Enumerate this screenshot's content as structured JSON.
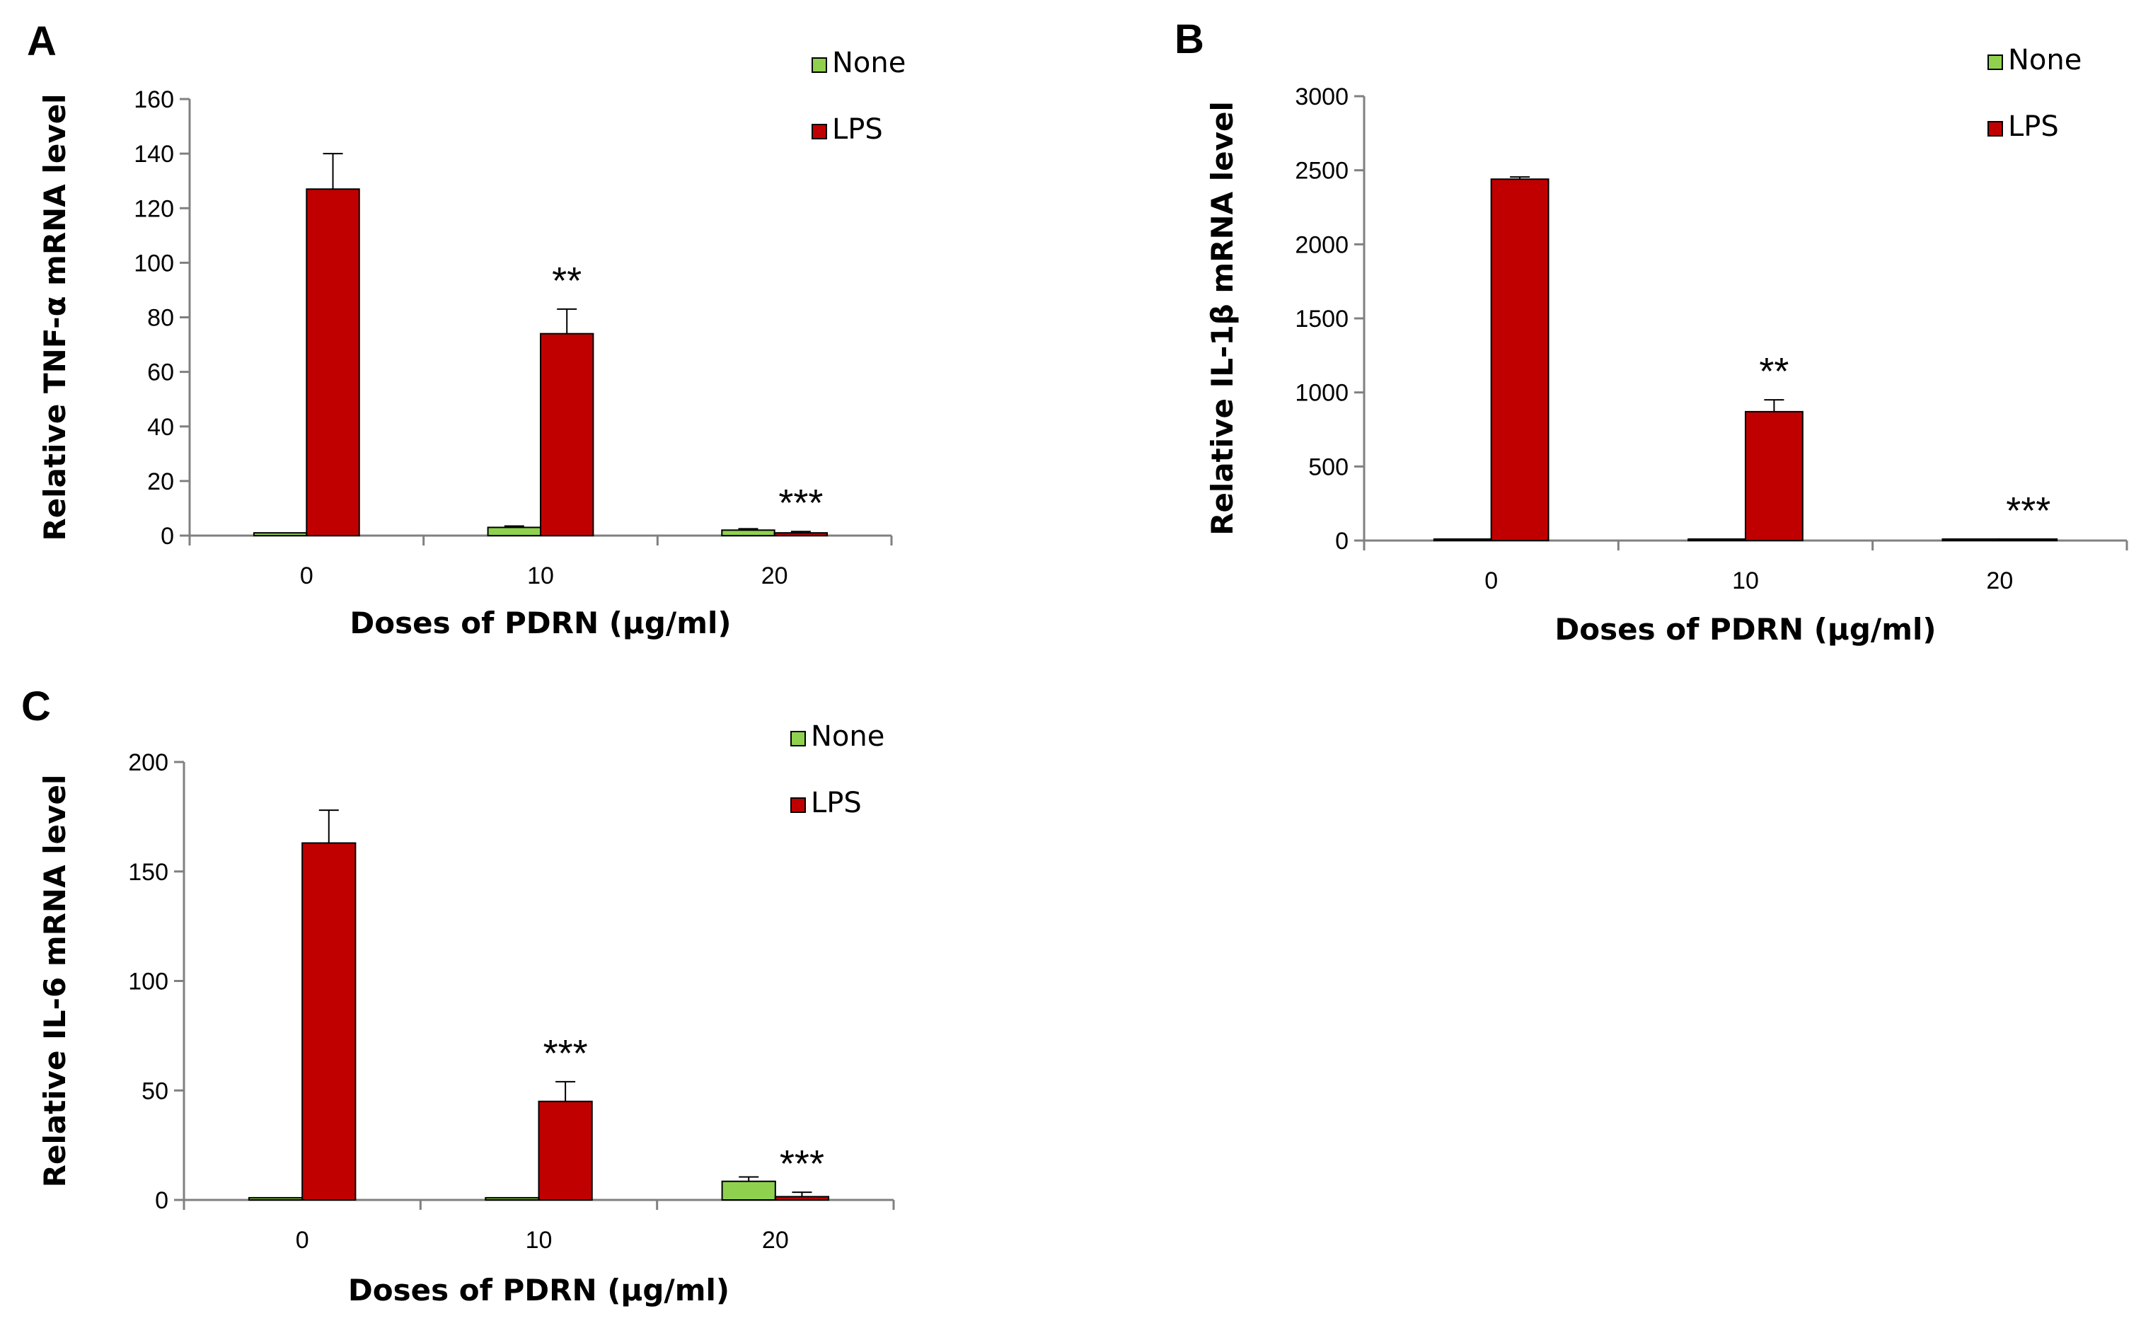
{
  "chart_data": [
    {
      "panel": "A",
      "type": "bar",
      "categories": [
        "0",
        "10",
        "20"
      ],
      "series": [
        {
          "name": "None",
          "color": "#8fd14f",
          "values": [
            1,
            3,
            2
          ],
          "errors": [
            0,
            0.5,
            0.5
          ]
        },
        {
          "name": "LPS",
          "color": "#c00000",
          "values": [
            127,
            74,
            1
          ],
          "errors": [
            13,
            9,
            0.5
          ]
        }
      ],
      "significance": [
        "",
        "**",
        "***"
      ],
      "xlabel": "Doses of PDRN  (µg/ml)",
      "ylabel": "Relative TNF-α mRNA level",
      "ylim": [
        0,
        160
      ],
      "yticks": [
        "0",
        "20",
        "40",
        "60",
        "80",
        "100",
        "120",
        "140",
        "160"
      ],
      "legend_position": "top-right",
      "grid": false
    },
    {
      "panel": "B",
      "type": "bar",
      "categories": [
        "0",
        "10",
        "20"
      ],
      "series": [
        {
          "name": "None",
          "color": "#8fd14f",
          "values": [
            10,
            10,
            10
          ],
          "errors": [
            0,
            0,
            0
          ]
        },
        {
          "name": "LPS",
          "color": "#c00000",
          "values": [
            2440,
            870,
            10
          ],
          "errors": [
            15,
            80,
            0
          ]
        }
      ],
      "significance": [
        "",
        "**",
        "***"
      ],
      "xlabel": "Doses of PDRN  (µg/ml)",
      "ylabel": "Relative IL-1β mRNA level",
      "ylim": [
        0,
        3000
      ],
      "yticks": [
        "0",
        "500",
        "1000",
        "1500",
        "2000",
        "2500",
        "3000"
      ],
      "legend_position": "top-right",
      "grid": false
    },
    {
      "panel": "C",
      "type": "bar",
      "categories": [
        "0",
        "10",
        "20"
      ],
      "series": [
        {
          "name": "None",
          "color": "#8fd14f",
          "values": [
            1,
            1,
            8.5
          ],
          "errors": [
            0,
            0,
            2
          ]
        },
        {
          "name": "LPS",
          "color": "#c00000",
          "values": [
            163,
            45,
            1.5
          ],
          "errors": [
            15,
            9,
            2
          ]
        }
      ],
      "significance": [
        "",
        "***",
        "***"
      ],
      "xlabel": "Doses of PDRN  (µg/ml)",
      "ylabel": "Relative IL-6 mRNA level",
      "ylim": [
        0,
        200
      ],
      "yticks": [
        "0",
        "50",
        "100",
        "150",
        "200"
      ],
      "legend_position": "top-right",
      "grid": false
    }
  ]
}
